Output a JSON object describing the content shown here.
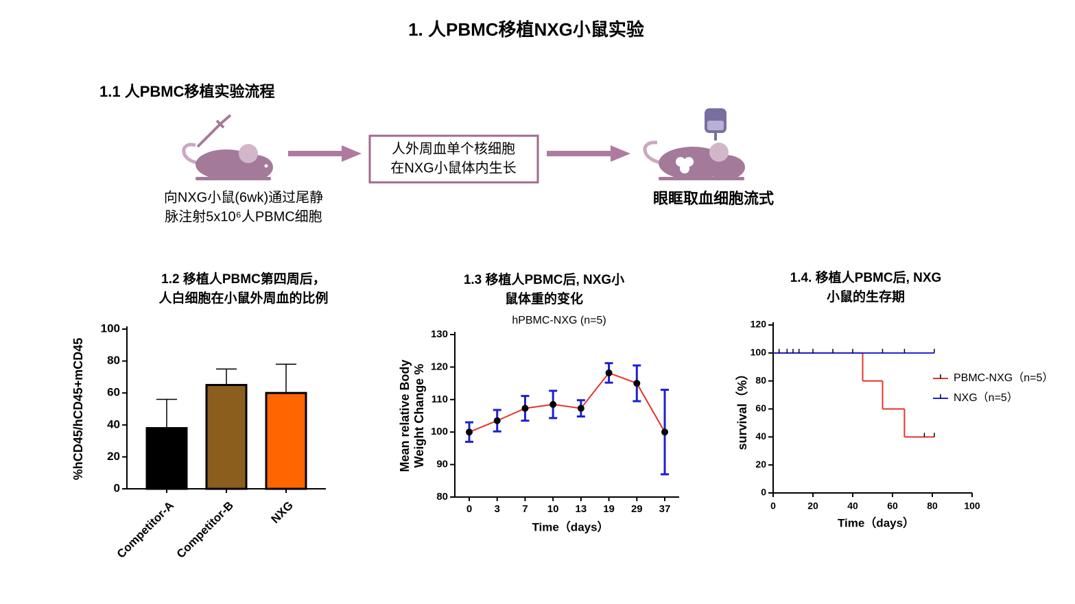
{
  "title": "1. 人PBMC移植NXG小鼠实验",
  "workflow": {
    "title": "1.1 人PBMC移植实验流程",
    "steps": [
      {
        "lines": [
          "向NXG小鼠(6wk)通过尾静",
          "脉注射5x10⁶人PBMC细胞"
        ]
      },
      {
        "lines": [
          "人外周血单个核细胞",
          "在NXG小鼠体内生长"
        ]
      },
      {
        "lines": [
          "眼眶取血细胞流式"
        ]
      }
    ]
  },
  "chart_data": [
    {
      "type": "bar",
      "title": [
        "1.2 移植人PBMC第四周后，",
        "人白细胞在小鼠外周血的比例"
      ],
      "ylabel": "%hCD45/hCD45+mCD45",
      "categories": [
        "Competitor-A",
        "Competitor-B",
        "NXG"
      ],
      "values": [
        38,
        65,
        60
      ],
      "errors": [
        18,
        10,
        18
      ],
      "colors": [
        "#000000",
        "#8b5e1e",
        "#ff6600"
      ],
      "ylim": [
        0,
        100
      ],
      "yticks": [
        0,
        20,
        40,
        60,
        80,
        100
      ]
    },
    {
      "type": "line",
      "title": [
        "1.3 移植人PBMC后, NXG小",
        "鼠体重的变化"
      ],
      "subtitle": "hPBMC-NXG (n=5)",
      "ylabel": [
        "Mean relative Body",
        "Weight Change %"
      ],
      "xlabel": "Time（days）",
      "categories": [
        "0",
        "3",
        "7",
        "10",
        "13",
        "19",
        "29",
        "37"
      ],
      "values": [
        100,
        103.5,
        107.3,
        108.5,
        107.3,
        118.2,
        115,
        100
      ],
      "errors": [
        3,
        3.3,
        3.8,
        4.2,
        2.5,
        3,
        5.5,
        13
      ],
      "color": "#e8302a",
      "error_color": "#1f1fcf",
      "marker_color": "#000000",
      "ylim": [
        80,
        130
      ],
      "yticks": [
        80,
        90,
        100,
        110,
        120,
        130
      ]
    },
    {
      "type": "line",
      "step": "post",
      "title": [
        "1.4. 移植人PBMC后, NXG",
        "小鼠的生存期"
      ],
      "ylabel": "survival（%）",
      "xlabel": "Time（days）",
      "xlim": [
        0,
        100
      ],
      "xticks": [
        0,
        20,
        40,
        60,
        80,
        100
      ],
      "ylim": [
        0,
        120
      ],
      "yticks": [
        0,
        20,
        40,
        60,
        80,
        100,
        120
      ],
      "legend": "right",
      "series": [
        {
          "name": "PBMC-NXG（n=5）",
          "color": "#e8302a",
          "x": [
            0,
            45,
            55,
            66,
            81
          ],
          "values": [
            100,
            80,
            60,
            40,
            40
          ],
          "censored": [
            76,
            81
          ]
        },
        {
          "name": "NXG（n=5）",
          "color": "#1f1fcf",
          "x": [
            0,
            81
          ],
          "values": [
            100,
            100
          ],
          "censored": [
            3,
            7,
            10,
            13,
            20,
            30,
            40,
            55,
            66,
            81
          ]
        }
      ]
    }
  ]
}
